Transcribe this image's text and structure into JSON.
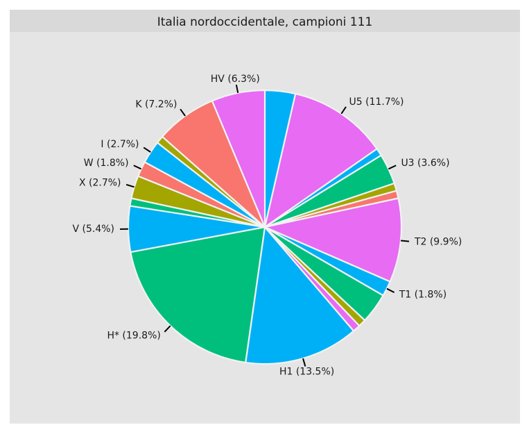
{
  "chart_data": {
    "type": "pie",
    "title": "Italia nordoccidentale, campioni 111",
    "start_angle_deg": 0,
    "direction": "clockwise",
    "background": "#E5E5E5",
    "strip_background": "#D9D9D9",
    "slice_border": "#F2F2F2",
    "slices": [
      {
        "value": 3.6,
        "color": "#00B0F6",
        "label": ""
      },
      {
        "value": 11.7,
        "color": "#E76BF3",
        "label": "U5 (11.7%)"
      },
      {
        "value": 0.9,
        "color": "#00B0F6",
        "label": ""
      },
      {
        "value": 3.6,
        "color": "#00BF7D",
        "label": "U3 (3.6%)"
      },
      {
        "value": 0.9,
        "color": "#A3A500",
        "label": ""
      },
      {
        "value": 0.9,
        "color": "#F8766D",
        "label": ""
      },
      {
        "value": 9.9,
        "color": "#E76BF3",
        "label": "T2 (9.9%)"
      },
      {
        "value": 1.8,
        "color": "#00B0F6",
        "label": "T1 (1.8%)"
      },
      {
        "value": 3.6,
        "color": "#00BF7D",
        "label": ""
      },
      {
        "value": 0.9,
        "color": "#A3A500",
        "label": ""
      },
      {
        "value": 0.9,
        "color": "#E76BF3",
        "label": ""
      },
      {
        "value": 13.5,
        "color": "#00B0F6",
        "label": "H1 (13.5%)"
      },
      {
        "value": 19.8,
        "color": "#00BF7D",
        "label": "H* (19.8%)"
      },
      {
        "value": 5.4,
        "color": "#00B0F6",
        "label": "V (5.4%)"
      },
      {
        "value": 0.9,
        "color": "#00BF7D",
        "label": ""
      },
      {
        "value": 2.7,
        "color": "#A3A500",
        "label": "X (2.7%)"
      },
      {
        "value": 1.8,
        "color": "#F8766D",
        "label": "W (1.8%)"
      },
      {
        "value": 2.7,
        "color": "#00B0F6",
        "label": "I (2.7%)"
      },
      {
        "value": 0.9,
        "color": "#A3A500",
        "label": ""
      },
      {
        "value": 7.2,
        "color": "#F8766D",
        "label": "K (7.2%)"
      },
      {
        "value": 6.3,
        "color": "#E76BF3",
        "label": "HV (6.3%)"
      }
    ]
  }
}
